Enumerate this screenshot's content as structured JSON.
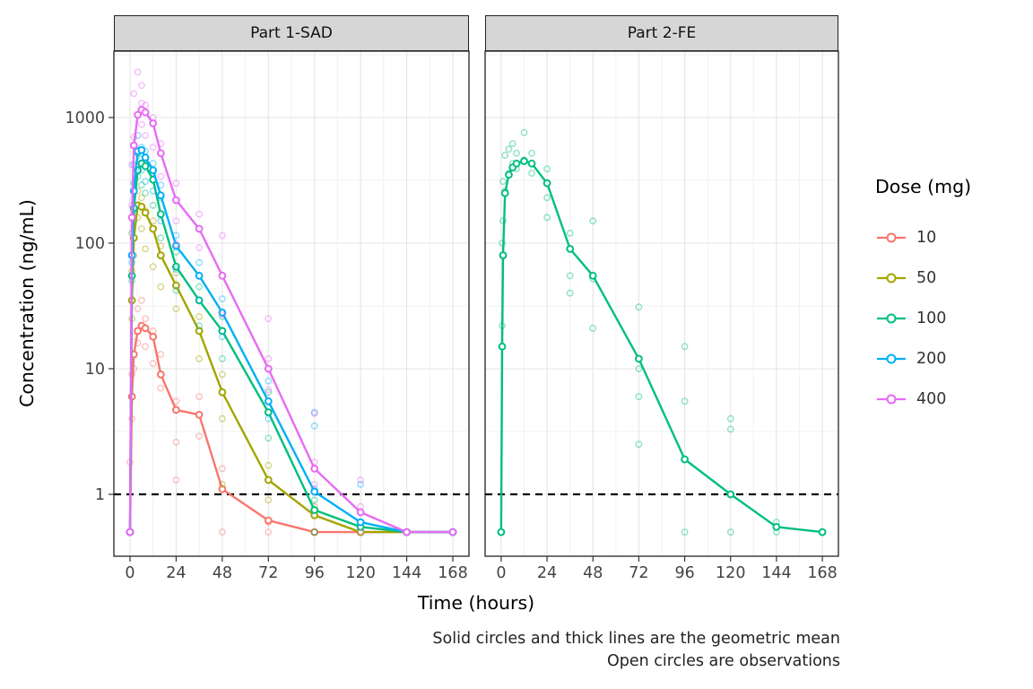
{
  "chart_data": {
    "type": "line",
    "y_scale": "log10",
    "xlabel": "Time (hours)",
    "ylabel": "Concentration (ng/mL)",
    "x_ticks": [
      0,
      24,
      48,
      72,
      96,
      120,
      144,
      168
    ],
    "y_ticks": [
      1,
      10,
      100,
      1000
    ],
    "xlim": [
      0,
      168
    ],
    "ylim": [
      0.32,
      3380
    ],
    "reference_line_y": 1,
    "grid": true,
    "facets": [
      "Part 1-SAD",
      "Part 2-FE"
    ],
    "legend": {
      "title": "Dose (mg)",
      "position": "right",
      "entries": [
        {
          "label": "10",
          "color": "#F8766D"
        },
        {
          "label": "50",
          "color": "#A3A500"
        },
        {
          "label": "100",
          "color": "#00BF7D"
        },
        {
          "label": "200",
          "color": "#00B0F6"
        },
        {
          "label": "400",
          "color": "#E76BF3"
        }
      ]
    },
    "caption": [
      "Solid circles and thick lines are the geometric mean",
      "Open circles are observations"
    ],
    "series": [
      {
        "dose": "10",
        "color": "#F8766D",
        "facet": 0,
        "mean": {
          "x": [
            0,
            1,
            2,
            4,
            6,
            8,
            12,
            16,
            24,
            36,
            48,
            72,
            96,
            120,
            144,
            168
          ],
          "y": [
            0.5,
            6,
            13,
            20,
            22,
            21,
            18,
            9,
            4.7,
            4.3,
            1.1,
            0.62,
            0.5,
            0.5,
            0.5,
            0.5
          ]
        },
        "obs": [
          [
            0,
            0.5
          ],
          [
            0,
            0.5
          ],
          [
            0,
            1.8
          ],
          [
            1,
            4
          ],
          [
            1,
            9
          ],
          [
            2,
            10
          ],
          [
            2,
            18
          ],
          [
            4,
            16
          ],
          [
            4,
            30
          ],
          [
            6,
            22
          ],
          [
            6,
            35
          ],
          [
            8,
            25
          ],
          [
            8,
            15
          ],
          [
            12,
            20
          ],
          [
            12,
            11
          ],
          [
            16,
            13
          ],
          [
            16,
            7
          ],
          [
            24,
            5.5
          ],
          [
            24,
            2.6
          ],
          [
            24,
            1.3
          ],
          [
            36,
            6
          ],
          [
            36,
            2.9
          ],
          [
            48,
            1.6
          ],
          [
            48,
            0.5
          ],
          [
            72,
            0.6
          ],
          [
            72,
            0.5
          ],
          [
            96,
            0.5
          ],
          [
            120,
            0.5
          ],
          [
            144,
            0.5
          ],
          [
            168,
            0.5
          ]
        ]
      },
      {
        "dose": "50",
        "color": "#A3A500",
        "facet": 0,
        "mean": {
          "x": [
            0,
            1,
            2,
            4,
            6,
            8,
            12,
            16,
            24,
            36,
            48,
            72,
            96,
            120,
            144,
            168
          ],
          "y": [
            0.5,
            35,
            110,
            200,
            195,
            175,
            130,
            80,
            46,
            20,
            6.5,
            1.3,
            0.68,
            0.5,
            0.5,
            0.5
          ]
        },
        "obs": [
          [
            0,
            0.5
          ],
          [
            0,
            0.5
          ],
          [
            1,
            25
          ],
          [
            1,
            60
          ],
          [
            2,
            80
          ],
          [
            2,
            150
          ],
          [
            4,
            160
          ],
          [
            4,
            260
          ],
          [
            6,
            230
          ],
          [
            6,
            130
          ],
          [
            8,
            180
          ],
          [
            8,
            90
          ],
          [
            12,
            150
          ],
          [
            12,
            65
          ],
          [
            16,
            95
          ],
          [
            16,
            45
          ],
          [
            24,
            58
          ],
          [
            24,
            30
          ],
          [
            36,
            26
          ],
          [
            36,
            12
          ],
          [
            48,
            9
          ],
          [
            48,
            4
          ],
          [
            48,
            1.2
          ],
          [
            72,
            1.7
          ],
          [
            72,
            0.9
          ],
          [
            96,
            0.8
          ],
          [
            96,
            0.5
          ],
          [
            120,
            0.5
          ],
          [
            144,
            0.5
          ],
          [
            168,
            0.5
          ]
        ]
      },
      {
        "dose": "100",
        "color": "#00BF7D",
        "facet": 0,
        "mean": {
          "x": [
            0,
            1,
            2,
            4,
            6,
            8,
            12,
            16,
            24,
            36,
            48,
            72,
            96,
            120,
            144,
            168
          ],
          "y": [
            0.5,
            55,
            190,
            380,
            430,
            410,
            320,
            170,
            65,
            35,
            20,
            4.5,
            0.75,
            0.55,
            0.5,
            0.5
          ]
        },
        "obs": [
          [
            0,
            0.5
          ],
          [
            0,
            0.5
          ],
          [
            1,
            50
          ],
          [
            1,
            120
          ],
          [
            2,
            180
          ],
          [
            2,
            300
          ],
          [
            4,
            340
          ],
          [
            4,
            520
          ],
          [
            6,
            470
          ],
          [
            6,
            290
          ],
          [
            8,
            420
          ],
          [
            8,
            250
          ],
          [
            12,
            360
          ],
          [
            12,
            200
          ],
          [
            16,
            230
          ],
          [
            16,
            110
          ],
          [
            24,
            85
          ],
          [
            24,
            42
          ],
          [
            36,
            45
          ],
          [
            36,
            22
          ],
          [
            48,
            26
          ],
          [
            48,
            12
          ],
          [
            72,
            6.5
          ],
          [
            72,
            2.8
          ],
          [
            96,
            0.9
          ],
          [
            96,
            0.5
          ],
          [
            120,
            0.6
          ],
          [
            144,
            0.5
          ],
          [
            168,
            0.5
          ]
        ]
      },
      {
        "dose": "200",
        "color": "#00B0F6",
        "facet": 0,
        "mean": {
          "x": [
            0,
            1,
            2,
            4,
            6,
            8,
            12,
            16,
            24,
            36,
            48,
            72,
            96,
            120,
            144,
            168
          ],
          "y": [
            0.5,
            80,
            260,
            540,
            550,
            480,
            380,
            240,
            95,
            55,
            28,
            5.5,
            1.05,
            0.6,
            0.5,
            0.5
          ]
        },
        "obs": [
          [
            0,
            0.5
          ],
          [
            0,
            0.5
          ],
          [
            1,
            70
          ],
          [
            1,
            160
          ],
          [
            2,
            260
          ],
          [
            2,
            420
          ],
          [
            4,
            520
          ],
          [
            4,
            720
          ],
          [
            6,
            580
          ],
          [
            6,
            380
          ],
          [
            8,
            540
          ],
          [
            8,
            310
          ],
          [
            12,
            430
          ],
          [
            12,
            260
          ],
          [
            16,
            290
          ],
          [
            16,
            150
          ],
          [
            24,
            115
          ],
          [
            24,
            62
          ],
          [
            36,
            70
          ],
          [
            36,
            35
          ],
          [
            48,
            36
          ],
          [
            48,
            18
          ],
          [
            72,
            8
          ],
          [
            72,
            4
          ],
          [
            96,
            4.5
          ],
          [
            96,
            3.5
          ],
          [
            96,
            1.1
          ],
          [
            120,
            1.2
          ],
          [
            120,
            0.6
          ],
          [
            144,
            0.5
          ],
          [
            168,
            0.5
          ]
        ]
      },
      {
        "dose": "400",
        "color": "#E76BF3",
        "facet": 0,
        "mean": {
          "x": [
            0,
            1,
            2,
            4,
            6,
            8,
            12,
            16,
            24,
            36,
            48,
            72,
            96,
            120,
            144,
            168
          ],
          "y": [
            0.5,
            160,
            600,
            1050,
            1150,
            1100,
            900,
            520,
            220,
            130,
            55,
            10,
            1.6,
            0.72,
            0.5,
            0.5
          ]
        },
        "obs": [
          [
            0,
            0.5
          ],
          [
            0,
            0.5
          ],
          [
            1,
            200
          ],
          [
            1,
            420
          ],
          [
            2,
            700
          ],
          [
            2,
            1550
          ],
          [
            4,
            1050
          ],
          [
            4,
            2300
          ],
          [
            6,
            1300
          ],
          [
            6,
            1800
          ],
          [
            6,
            880
          ],
          [
            8,
            1250
          ],
          [
            8,
            720
          ],
          [
            12,
            1000
          ],
          [
            12,
            580
          ],
          [
            16,
            620
          ],
          [
            16,
            340
          ],
          [
            24,
            300
          ],
          [
            24,
            150
          ],
          [
            24,
            98
          ],
          [
            36,
            170
          ],
          [
            36,
            92
          ],
          [
            48,
            115
          ],
          [
            48,
            55
          ],
          [
            48,
            27
          ],
          [
            72,
            25
          ],
          [
            72,
            12
          ],
          [
            72,
            6.8
          ],
          [
            96,
            4.4
          ],
          [
            96,
            1.8
          ],
          [
            96,
            1.2
          ],
          [
            120,
            1.3
          ],
          [
            120,
            0.8
          ],
          [
            120,
            0.5
          ],
          [
            144,
            0.5
          ],
          [
            168,
            0.5
          ]
        ]
      },
      {
        "dose": "100",
        "color": "#00BF7D",
        "facet": 1,
        "mean": {
          "x": [
            0,
            0.5,
            1,
            2,
            4,
            6,
            8,
            12,
            16,
            24,
            36,
            48,
            72,
            96,
            120,
            144,
            168
          ],
          "y": [
            0.5,
            15,
            80,
            250,
            350,
            400,
            430,
            450,
            430,
            300,
            90,
            55,
            12,
            1.9,
            1.0,
            0.55,
            0.5
          ]
        },
        "obs": [
          [
            0,
            0.5
          ],
          [
            0,
            0.5
          ],
          [
            0.5,
            22
          ],
          [
            0.5,
            100
          ],
          [
            1,
            150
          ],
          [
            1,
            310
          ],
          [
            2,
            260
          ],
          [
            2,
            500
          ],
          [
            4,
            360
          ],
          [
            4,
            560
          ],
          [
            6,
            430
          ],
          [
            6,
            620
          ],
          [
            8,
            520
          ],
          [
            8,
            390
          ],
          [
            12,
            760
          ],
          [
            12,
            460
          ],
          [
            16,
            520
          ],
          [
            16,
            360
          ],
          [
            24,
            390
          ],
          [
            24,
            230
          ],
          [
            24,
            160
          ],
          [
            36,
            120
          ],
          [
            36,
            55
          ],
          [
            36,
            40
          ],
          [
            48,
            150
          ],
          [
            48,
            52
          ],
          [
            48,
            21
          ],
          [
            72,
            31
          ],
          [
            72,
            10
          ],
          [
            72,
            6
          ],
          [
            72,
            2.5
          ],
          [
            96,
            15
          ],
          [
            96,
            5.5
          ],
          [
            96,
            0.5
          ],
          [
            120,
            4
          ],
          [
            120,
            3.3
          ],
          [
            120,
            0.5
          ],
          [
            144,
            0.6
          ],
          [
            144,
            0.5
          ],
          [
            168,
            0.5
          ]
        ]
      }
    ]
  }
}
